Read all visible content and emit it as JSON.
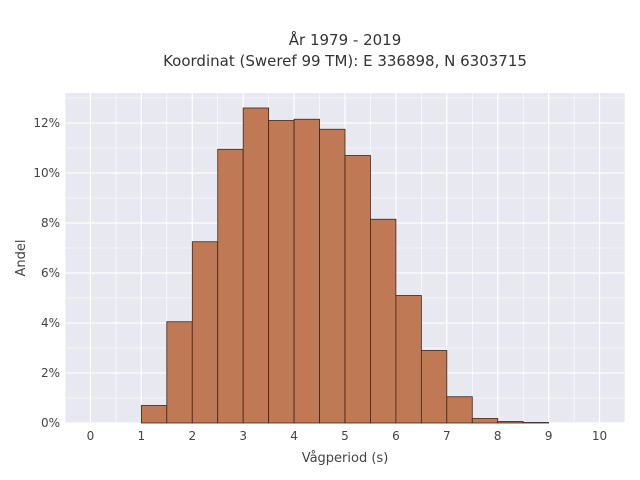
{
  "chart_data": {
    "type": "bar",
    "title": "År 1979 - 2019",
    "subtitle": "Koordinat (Sweref 99 TM): E 336898, N 6303715",
    "xlabel": "Vågperiod (s)",
    "ylabel": "Andel",
    "xlim": [
      -0.5,
      10.5
    ],
    "ylim": [
      0,
      13.2
    ],
    "x_ticks": [
      0,
      1,
      2,
      3,
      4,
      5,
      6,
      7,
      8,
      9,
      10
    ],
    "y_ticks": [
      0,
      2,
      4,
      6,
      8,
      10,
      12
    ],
    "y_tick_suffix": "%",
    "bin_width": 0.5,
    "bin_starts": [
      1.0,
      1.5,
      2.0,
      2.5,
      3.0,
      3.5,
      4.0,
      4.5,
      5.0,
      5.5,
      6.0,
      6.5,
      7.0,
      7.5,
      8.0,
      8.5
    ],
    "values": [
      0.7,
      4.05,
      7.25,
      10.95,
      12.6,
      12.1,
      12.15,
      11.75,
      10.7,
      8.15,
      5.1,
      2.9,
      1.05,
      0.18,
      0.06,
      0.02
    ],
    "grid": true,
    "colors": {
      "bar_fill": "#bf7a55",
      "bar_edge": "#3d2418",
      "plot_bg": "#e8e8f0",
      "grid": "#ffffff"
    }
  }
}
